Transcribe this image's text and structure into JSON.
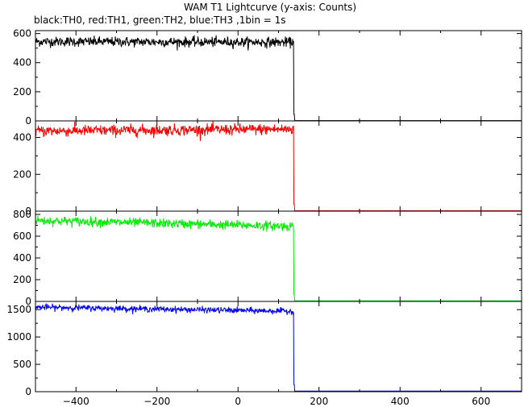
{
  "chart_data": {
    "type": "line",
    "title": "WAM T1 Lightcurve (y-axis: Counts)",
    "subtitle": "black:TH0, red:TH1, green:TH2, blue:TH3 ,1bin = 1s",
    "xlim": [
      -500,
      700
    ],
    "x_ticks": [
      -400,
      -200,
      0,
      200,
      400,
      600
    ],
    "x_tick_labels": [
      "−400",
      "−200",
      "0",
      "200",
      "400",
      "600"
    ],
    "drop_time": 138,
    "grid": false,
    "panels": [
      {
        "series": "TH0",
        "color": "#000000",
        "ylim": [
          0,
          620
        ],
        "y_ticks": [
          0,
          200,
          400,
          600
        ],
        "level_start": 545,
        "level_end": 540,
        "noise": 28,
        "post_drop_level": 2
      },
      {
        "series": "TH1",
        "color": "#ff0000",
        "ylim": [
          0,
          490
        ],
        "y_ticks": [
          0,
          200,
          400
        ],
        "level_start": 435,
        "level_end": 445,
        "noise": 25,
        "post_drop_level": 2
      },
      {
        "series": "TH2",
        "color": "#00ee00",
        "ylim": [
          0,
          830
        ],
        "y_ticks": [
          0,
          200,
          400,
          600,
          800
        ],
        "level_start": 745,
        "level_end": 690,
        "noise": 35,
        "post_drop_level": 5
      },
      {
        "series": "TH3",
        "color": "#0000ff",
        "ylim": [
          0,
          1650
        ],
        "y_ticks": [
          0,
          500,
          1000,
          1500
        ],
        "level_start": 1545,
        "level_end": 1470,
        "noise": 45,
        "post_drop_level": 10
      }
    ]
  }
}
